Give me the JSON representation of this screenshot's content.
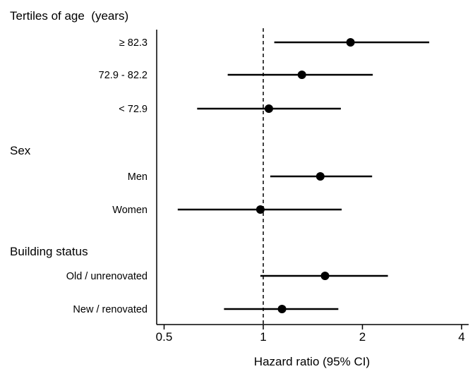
{
  "chart_data": {
    "type": "scatter",
    "subtype": "forest",
    "title": "",
    "xlabel": "Hazard ratio (95% CI)",
    "ylabel": "",
    "xscale": "log",
    "xlim": [
      0.475,
      4.2
    ],
    "xticks": [
      0.5,
      1,
      2,
      4
    ],
    "xtick_labels": [
      "0.5",
      "1",
      "2",
      "4"
    ],
    "reference_line": {
      "x": 1,
      "style": "dashed"
    },
    "grid": false,
    "legend": "none",
    "groups": [
      {
        "heading": "Tertiles of age  (years)",
        "rows": [
          {
            "label": "≥ 82.3",
            "hr": 1.84,
            "ci_low": 1.08,
            "ci_high": 3.19
          },
          {
            "label": "72.9 - 82.2",
            "hr": 1.31,
            "ci_low": 0.78,
            "ci_high": 2.15
          },
          {
            "label": "< 72.9",
            "hr": 1.04,
            "ci_low": 0.63,
            "ci_high": 1.72
          }
        ]
      },
      {
        "heading": "Sex",
        "rows": [
          {
            "label": "Men",
            "hr": 1.49,
            "ci_low": 1.05,
            "ci_high": 2.14
          },
          {
            "label": "Women",
            "hr": 0.98,
            "ci_low": 0.55,
            "ci_high": 1.73
          }
        ]
      },
      {
        "heading": "Building status",
        "rows": [
          {
            "label": "Old / unrenovated",
            "hr": 1.54,
            "ci_low": 0.98,
            "ci_high": 2.39
          },
          {
            "label": "New / renovated",
            "hr": 1.14,
            "ci_low": 0.76,
            "ci_high": 1.69
          }
        ]
      }
    ]
  },
  "colors": {
    "marker": "#000000",
    "line": "#000000",
    "background": "#ffffff"
  }
}
